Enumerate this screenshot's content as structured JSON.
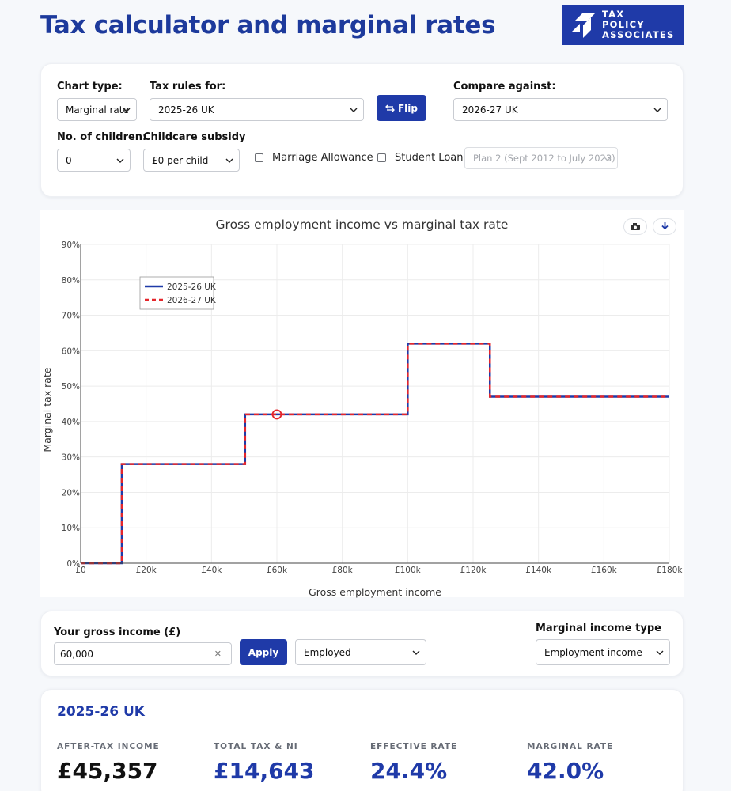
{
  "page": {
    "title": "Tax calculator and marginal rates"
  },
  "logo": {
    "line1": "TAX",
    "line2": "POLICY",
    "line3": "ASSOCIATES"
  },
  "controls": {
    "chart_type_label": "Chart type:",
    "chart_type_value": "Marginal rate",
    "tax_rules_label": "Tax rules for:",
    "tax_rules_value": "2025-26 UK",
    "flip_label": "Flip",
    "compare_label": "Compare against:",
    "compare_value": "2026-27 UK",
    "children_label": "No. of children:",
    "children_value": "0",
    "childcare_label": "Childcare subsidy",
    "childcare_value": "£0 per child",
    "marriage_label": "Marriage Allowance",
    "student_loan_label": "Student Loan",
    "student_loan_plan": "Plan 2 (Sept 2012 to July 2023)"
  },
  "chart_data": {
    "type": "line",
    "title": "Gross employment income vs marginal tax rate",
    "xlabel": "Gross employment income",
    "ylabel": "Marginal tax rate",
    "xlim": [
      0,
      180000
    ],
    "ylim": [
      0,
      90
    ],
    "x_ticks": [
      0,
      20000,
      40000,
      60000,
      80000,
      100000,
      120000,
      140000,
      160000,
      180000
    ],
    "x_tick_labels": [
      "£0",
      "£20k",
      "£40k",
      "£60k",
      "£80k",
      "£100k",
      "£120k",
      "£140k",
      "£160k",
      "£180k"
    ],
    "y_ticks": [
      0,
      10,
      20,
      30,
      40,
      50,
      60,
      70,
      80,
      90
    ],
    "y_tick_labels": [
      "0%",
      "10%",
      "20%",
      "30%",
      "40%",
      "50%",
      "60%",
      "70%",
      "80%",
      "90%"
    ],
    "grid": true,
    "legend_position": "top-left",
    "series": [
      {
        "name": "2025-26 UK",
        "color": "#1f3aa8",
        "style": "solid",
        "x": [
          0,
          12570,
          12570,
          50270,
          50270,
          100000,
          100000,
          125140,
          125140,
          180000
        ],
        "y": [
          0,
          0,
          28,
          28,
          42,
          42,
          62,
          62,
          47,
          47
        ]
      },
      {
        "name": "2026-27 UK",
        "color": "#e5262b",
        "style": "dashed",
        "x": [
          0,
          12570,
          12570,
          50270,
          50270,
          100000,
          100000,
          125140,
          125140,
          180000
        ],
        "y": [
          0,
          0,
          28,
          28,
          42,
          42,
          62,
          62,
          47,
          47
        ]
      }
    ],
    "marker": {
      "x": 60000,
      "y": 42,
      "color": "#e5262b"
    }
  },
  "income": {
    "label": "Your gross income (£)",
    "value": "60,000",
    "apply_label": "Apply",
    "employment_value": "Employed",
    "marginal_type_label": "Marginal income type",
    "marginal_type_value": "Employment income"
  },
  "results": {
    "heading": "2025-26 UK",
    "after_tax_label": "AFTER-TAX INCOME",
    "after_tax_value": "£45,357",
    "total_tax_label": "TOTAL TAX & NI",
    "total_tax_value": "£14,643",
    "effective_label": "EFFECTIVE RATE",
    "effective_value": "24.4%",
    "marginal_label": "MARGINAL RATE",
    "marginal_value": "42.0%"
  },
  "icons": {
    "camera": "camera-icon",
    "download": "download-icon",
    "flip": "swap-arrows-icon",
    "chevron": "chevron-down-icon",
    "clear": "clear-icon"
  },
  "colors": {
    "brand_blue": "#1f3aa8",
    "title_blue": "#1d3a9c",
    "compare_red": "#e5262b"
  }
}
